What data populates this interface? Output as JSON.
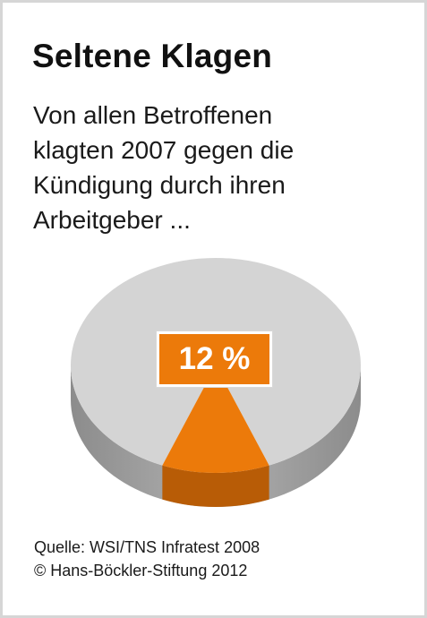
{
  "title": "Seltene Klagen",
  "subtitle": "Von allen Betroffenen\nklagten 2007 gegen die\nKündigung durch ihren\nArbeitgeber ...",
  "colors": {
    "highlight": "#ec7a0a",
    "highlight_side": "#b85c06",
    "rest": "#d4d4d4",
    "rest_side": "#9a9a9a"
  },
  "chart_data": {
    "type": "pie",
    "slices": [
      {
        "value": 12,
        "label": "12 %",
        "color": "#ec7a0a"
      },
      {
        "value": 88,
        "label": "",
        "color": "#d4d4d4"
      }
    ],
    "style": "3d"
  },
  "source": {
    "line1": "Quelle: WSI/TNS Infratest 2008",
    "line2": "© Hans-Böckler-Stiftung 2012"
  }
}
